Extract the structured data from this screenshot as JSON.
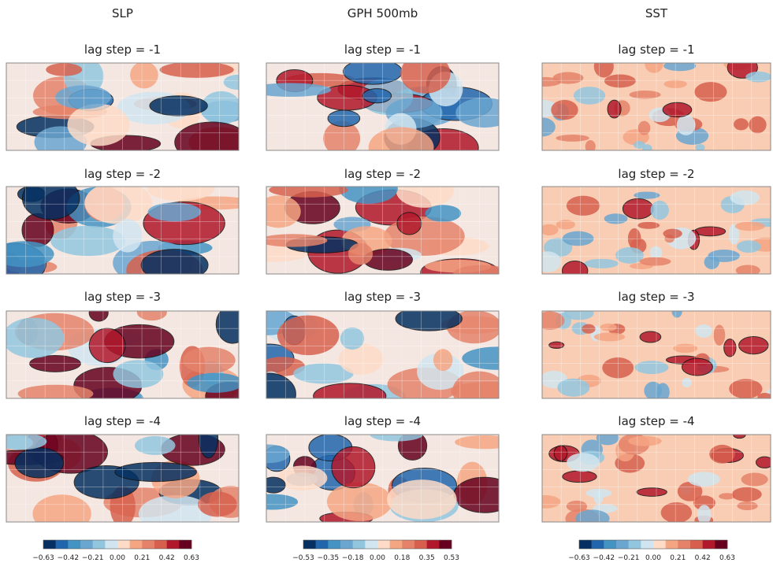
{
  "columns": [
    {
      "title": "SLP",
      "panels": [
        "lag step = -1",
        "lag step = -2",
        "lag step = -3",
        "lag step = -4"
      ],
      "colorbar": {
        "ticks": [
          "−0.63",
          "−0.42",
          "−0.21",
          "0.00",
          "0.21",
          "0.42",
          "0.63"
        ]
      }
    },
    {
      "title": "GPH 500mb",
      "panels": [
        "lag step = -1",
        "lag step = -2",
        "lag step = -3",
        "lag step = -4"
      ],
      "colorbar": {
        "ticks": [
          "−0.53",
          "−0.35",
          "−0.18",
          "0.00",
          "0.18",
          "0.35",
          "0.53"
        ]
      }
    },
    {
      "title": "SST",
      "panels": [
        "lag step = -1",
        "lag step = -2",
        "lag step = -3",
        "lag step = -4"
      ],
      "colorbar": {
        "ticks": [
          "−0.63",
          "−0.42",
          "−0.21",
          "0.00",
          "0.21",
          "0.42",
          "0.63"
        ]
      }
    }
  ],
  "colors": [
    "#053061",
    "#2166ac",
    "#4393c3",
    "#6aa6d0",
    "#92c5de",
    "#d1e5f0",
    "#fddbc7",
    "#f4a582",
    "#e4826a",
    "#d6604d",
    "#b2182b",
    "#67001f"
  ]
}
